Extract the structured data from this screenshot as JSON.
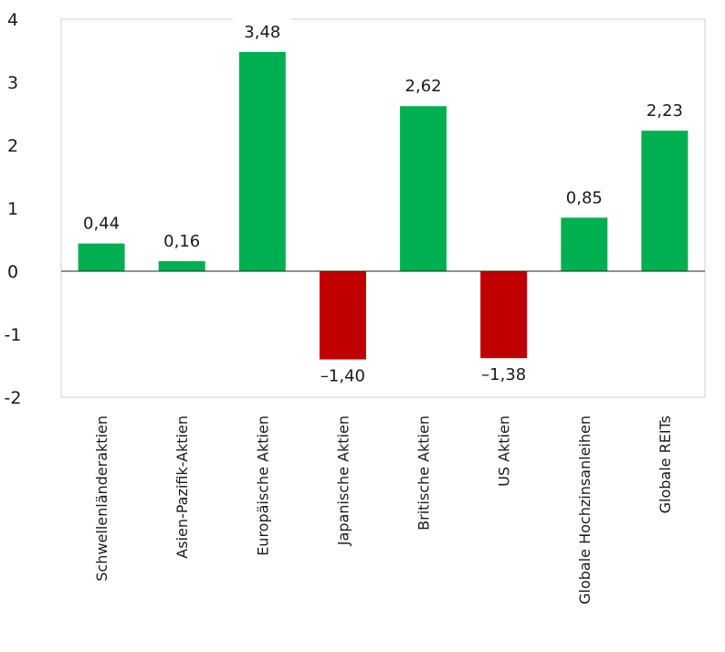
{
  "chart_data": {
    "type": "bar",
    "categories": [
      "Schwellenländeraktien",
      "Asien-Pazifik-Aktien",
      "Europäische Aktien",
      "Japanische Aktien",
      "Britische Aktien",
      "US Aktien",
      "Globale Hochzinsanleihen",
      "Globale REITs"
    ],
    "values": [
      0.44,
      0.16,
      3.48,
      -1.4,
      2.62,
      -1.38,
      0.85,
      2.23
    ],
    "value_labels": [
      "0,44",
      "0,16",
      "3,48",
      "–1,40",
      "2,62",
      "–1,38",
      "0,85",
      "2,23"
    ],
    "ylim": [
      -2,
      4
    ],
    "yticks": [
      4,
      3,
      2,
      1,
      0,
      -1,
      -2
    ],
    "ytick_labels": [
      "4",
      "3",
      "2",
      "1",
      "0",
      "-1",
      "-2"
    ],
    "title": "",
    "xlabel": "",
    "ylabel": "",
    "legend": "none",
    "grid": false,
    "colors": {
      "positive": "#00b050",
      "negative": "#c00000"
    }
  }
}
